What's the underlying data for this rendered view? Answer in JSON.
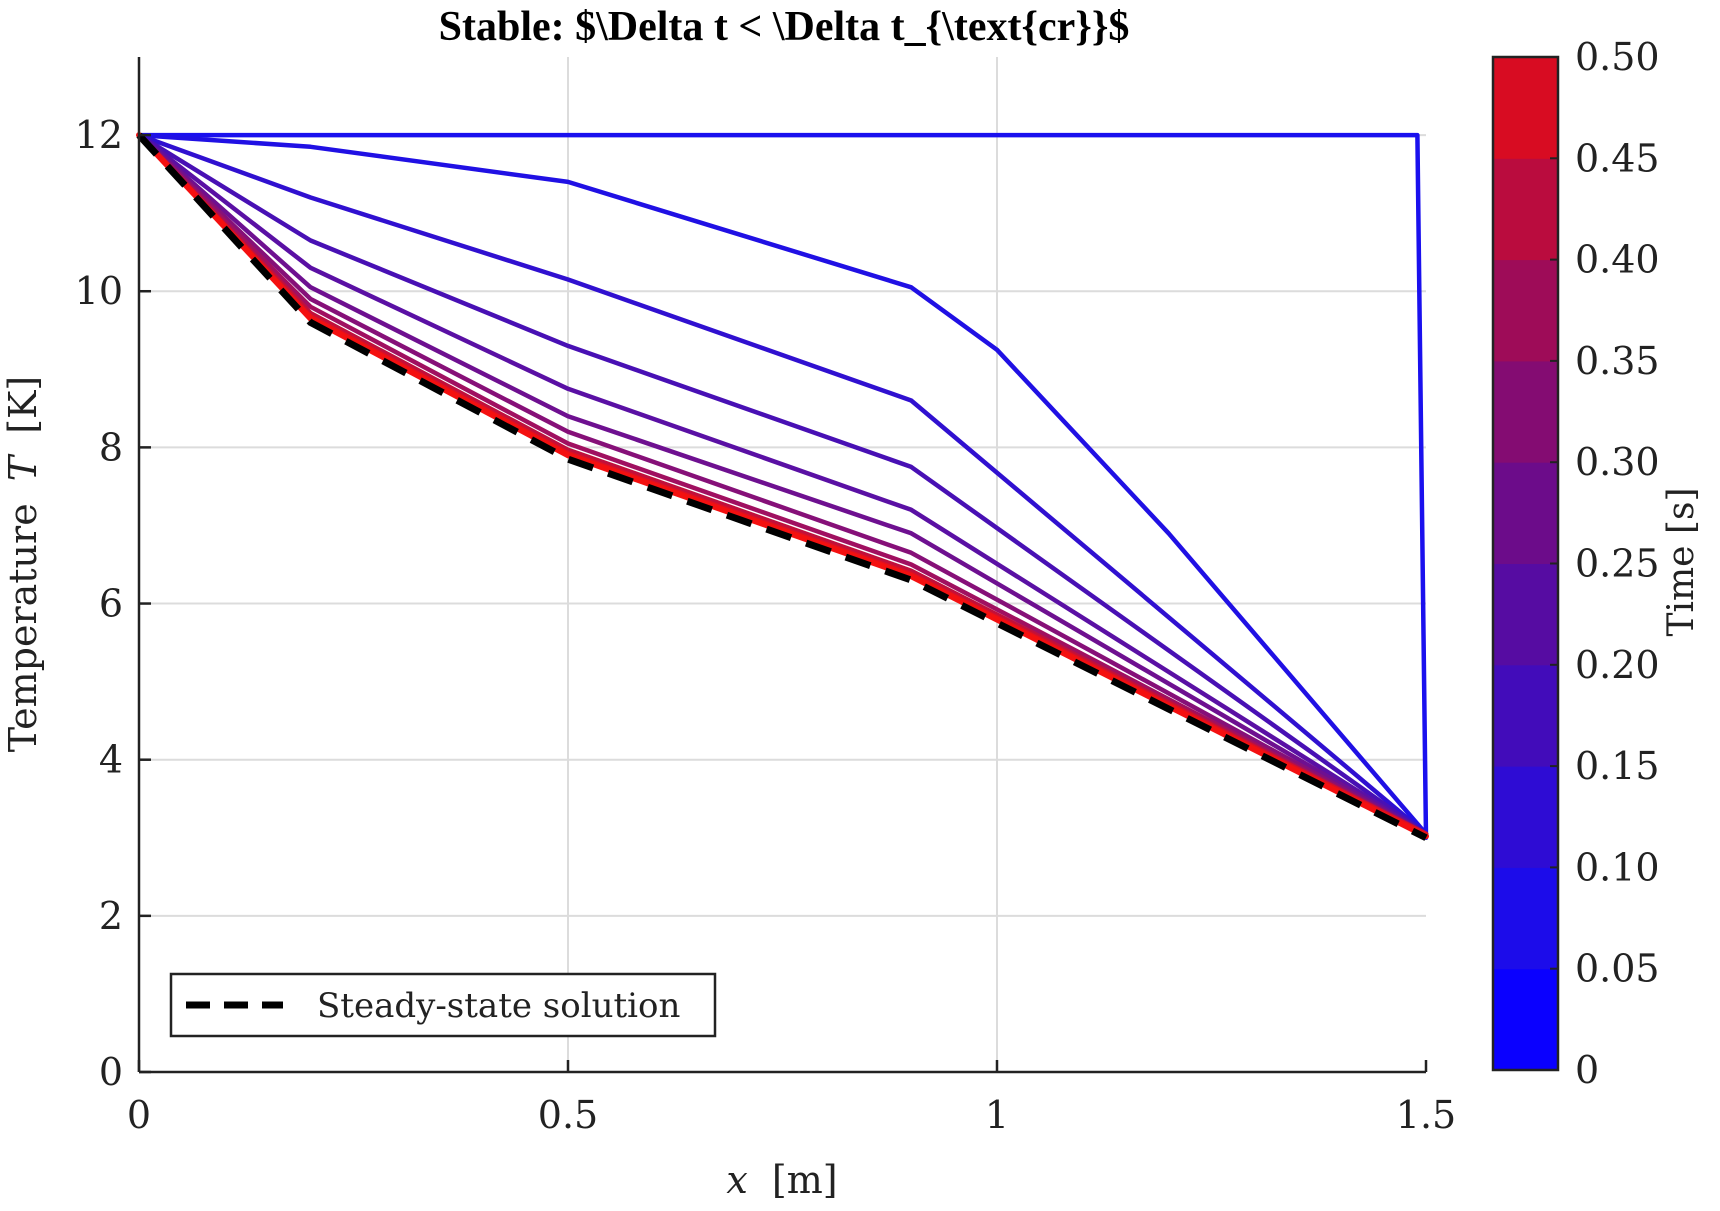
{
  "chart_data": {
    "type": "line",
    "title": "Stable: $\\Delta t < \\Delta t_{\\text{cr}}$",
    "xlabel_var": "x",
    "xlabel_unit": "[m]",
    "ylabel_text": "Temperature",
    "ylabel_var": "T",
    "ylabel_unit": "[K]",
    "xlim": [
      0,
      1.5
    ],
    "ylim": [
      0,
      13
    ],
    "xticks": [
      {
        "value": 0,
        "label": "0"
      },
      {
        "value": 0.5,
        "label": "0.5"
      },
      {
        "value": 1,
        "label": "1"
      },
      {
        "value": 1.5,
        "label": "1.5"
      }
    ],
    "yticks": [
      {
        "value": 0,
        "label": "0"
      },
      {
        "value": 2,
        "label": "2"
      },
      {
        "value": 4,
        "label": "4"
      },
      {
        "value": 6,
        "label": "6"
      },
      {
        "value": 8,
        "label": "8"
      },
      {
        "value": 10,
        "label": "10"
      },
      {
        "value": 12,
        "label": "12"
      }
    ],
    "grid": true,
    "x": [
      0,
      0.2,
      0.5,
      0.9,
      1.5
    ],
    "series": [
      {
        "time": 0.0,
        "color": "#1a10ee",
        "x": [
          0,
          1.49,
          1.5
        ],
        "values": [
          12,
          12,
          3
        ]
      },
      {
        "time": 0.05,
        "color": "#2010e4",
        "x": [
          0,
          0.2,
          0.5,
          0.9,
          1.0,
          1.2,
          1.5
        ],
        "values": [
          12,
          11.85,
          11.4,
          10.05,
          9.25,
          6.9,
          3.05
        ]
      },
      {
        "time": 0.1,
        "color": "#3010d0",
        "x": [
          0,
          0.2,
          0.5,
          0.9,
          1.5
        ],
        "values": [
          12,
          11.2,
          10.15,
          8.6,
          3.05
        ]
      },
      {
        "time": 0.15,
        "color": "#4810b4",
        "x": [
          0,
          0.2,
          0.5,
          0.9,
          1.5
        ],
        "values": [
          12,
          10.65,
          9.3,
          7.75,
          3.05
        ]
      },
      {
        "time": 0.2,
        "color": "#5a10a4",
        "x": [
          0,
          0.2,
          0.5,
          0.9,
          1.5
        ],
        "values": [
          12,
          10.3,
          8.75,
          7.2,
          3.05
        ]
      },
      {
        "time": 0.25,
        "color": "#6e1090",
        "x": [
          0,
          0.2,
          0.5,
          0.9,
          1.5
        ],
        "values": [
          12,
          10.05,
          8.4,
          6.9,
          3.05
        ]
      },
      {
        "time": 0.3,
        "color": "#861078",
        "x": [
          0,
          0.2,
          0.5,
          0.9,
          1.5
        ],
        "values": [
          12,
          9.9,
          8.2,
          6.65,
          3.05
        ]
      },
      {
        "time": 0.35,
        "color": "#a01060",
        "x": [
          0,
          0.2,
          0.5,
          0.9,
          1.5
        ],
        "values": [
          12,
          9.8,
          8.05,
          6.5,
          3.05
        ]
      },
      {
        "time": 0.4,
        "color": "#c0103c",
        "x": [
          0,
          0.2,
          0.5,
          0.9,
          1.5
        ],
        "values": [
          12,
          9.72,
          7.97,
          6.42,
          3.05
        ]
      },
      {
        "time": 0.45,
        "color": "#dc1024",
        "x": [
          0,
          0.2,
          0.5,
          0.9,
          1.5
        ],
        "values": [
          12,
          9.68,
          7.93,
          6.38,
          3.05
        ]
      },
      {
        "time": 0.5,
        "color": "#f41010",
        "x": [
          0,
          0.2,
          0.5,
          0.9,
          1.5
        ],
        "values": [
          12,
          9.65,
          7.9,
          6.35,
          3.02
        ]
      }
    ],
    "steady_state": {
      "name": "Steady-state solution",
      "x": [
        0,
        0.2,
        0.5,
        0.9,
        1.5
      ],
      "values": [
        12,
        9.6,
        7.85,
        6.3,
        3.0
      ],
      "color": "#000000"
    },
    "legend_position": "bottom-left",
    "colorbar": {
      "label": "Time [s]",
      "range": [
        0,
        0.5
      ],
      "ticks": [
        {
          "value": 0,
          "label": "0"
        },
        {
          "value": 0.05,
          "label": "0.05"
        },
        {
          "value": 0.1,
          "label": "0.10"
        },
        {
          "value": 0.15,
          "label": "0.15"
        },
        {
          "value": 0.2,
          "label": "0.20"
        },
        {
          "value": 0.25,
          "label": "0.25"
        },
        {
          "value": 0.3,
          "label": "0.30"
        },
        {
          "value": 0.35,
          "label": "0.35"
        },
        {
          "value": 0.4,
          "label": "0.40"
        },
        {
          "value": 0.45,
          "label": "0.45"
        },
        {
          "value": 0.5,
          "label": "0.50"
        }
      ],
      "segments": [
        {
          "from": 0.0,
          "to": 0.05,
          "color": "#0a00ff"
        },
        {
          "from": 0.05,
          "to": 0.1,
          "color": "#1c0cea"
        },
        {
          "from": 0.1,
          "to": 0.15,
          "color": "#2e0cd4"
        },
        {
          "from": 0.15,
          "to": 0.2,
          "color": "#420cba"
        },
        {
          "from": 0.2,
          "to": 0.25,
          "color": "#560ca2"
        },
        {
          "from": 0.25,
          "to": 0.3,
          "color": "#6c0c8a"
        },
        {
          "from": 0.3,
          "to": 0.35,
          "color": "#840c72"
        },
        {
          "from": 0.35,
          "to": 0.4,
          "color": "#9e0c58"
        },
        {
          "from": 0.4,
          "to": 0.45,
          "color": "#ba0c3e"
        },
        {
          "from": 0.45,
          "to": 0.5,
          "color": "#d80c22"
        }
      ],
      "top_color": "#ff0000"
    }
  }
}
